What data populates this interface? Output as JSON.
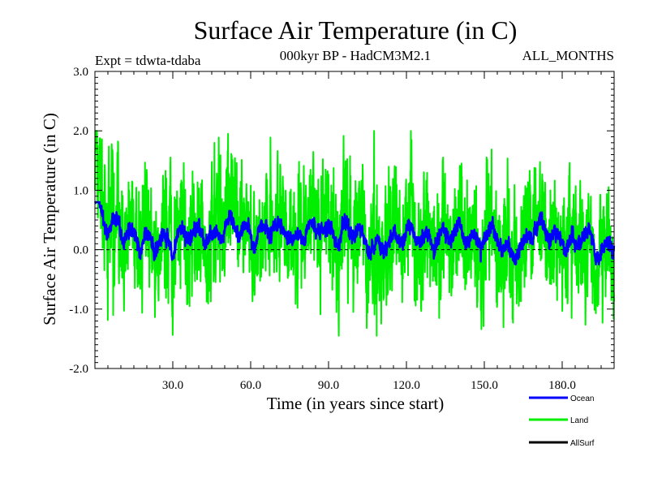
{
  "chart_data": {
    "type": "line",
    "title": "Surface Air Temperature (in C)",
    "subtitle_left": "Expt = tdwta-tdaba",
    "subtitle_center": "000kyr BP - HadCM3M2.1",
    "subtitle_right": "ALL_MONTHS",
    "xlabel": "Time (in years since start)",
    "ylabel": "Surface Air Temperature (in C)",
    "xlim": [
      0,
      200
    ],
    "ylim": [
      -2.0,
      3.0
    ],
    "x_ticks": [
      30,
      60,
      90,
      120,
      150,
      180
    ],
    "x_tick_labels": [
      "30.0",
      "60.0",
      "90.0",
      "120.0",
      "150.0",
      "180.0"
    ],
    "y_ticks": [
      -2,
      -1,
      0,
      1,
      2,
      3
    ],
    "y_tick_labels": [
      "-2.0",
      "-1.0",
      "0.0",
      "1.0",
      "2.0",
      "3.0"
    ],
    "reference_line_y": 0.0,
    "n_samples": 2400,
    "series": [
      {
        "name": "Land",
        "color": "#00ee00",
        "mean": 0.25,
        "approx_min": -1.45,
        "approx_max": 2.0,
        "start_value": 1.75,
        "notable_points": [
          {
            "x": 1,
            "y": 1.75
          },
          {
            "x": 107.5,
            "y": 2.0
          },
          {
            "x": 108.5,
            "y": -1.45
          },
          {
            "x": 46,
            "y": 1.8
          },
          {
            "x": 7,
            "y": -1.1
          },
          {
            "x": 93,
            "y": -1.05
          },
          {
            "x": 178,
            "y": -0.85
          }
        ]
      },
      {
        "name": "Ocean",
        "color": "#0000ff",
        "mean": 0.22,
        "approx_min": -0.3,
        "approx_max": 0.8,
        "start_value": 0.8
      },
      {
        "name": "AllSurf",
        "color": "#000000",
        "values": []
      }
    ],
    "legend": {
      "placement": "bottom-right",
      "entries": [
        {
          "label": "Ocean",
          "color": "#0000ff"
        },
        {
          "label": "Land",
          "color": "#00ee00"
        },
        {
          "label": "AllSurf",
          "color": "#000000"
        }
      ]
    }
  }
}
